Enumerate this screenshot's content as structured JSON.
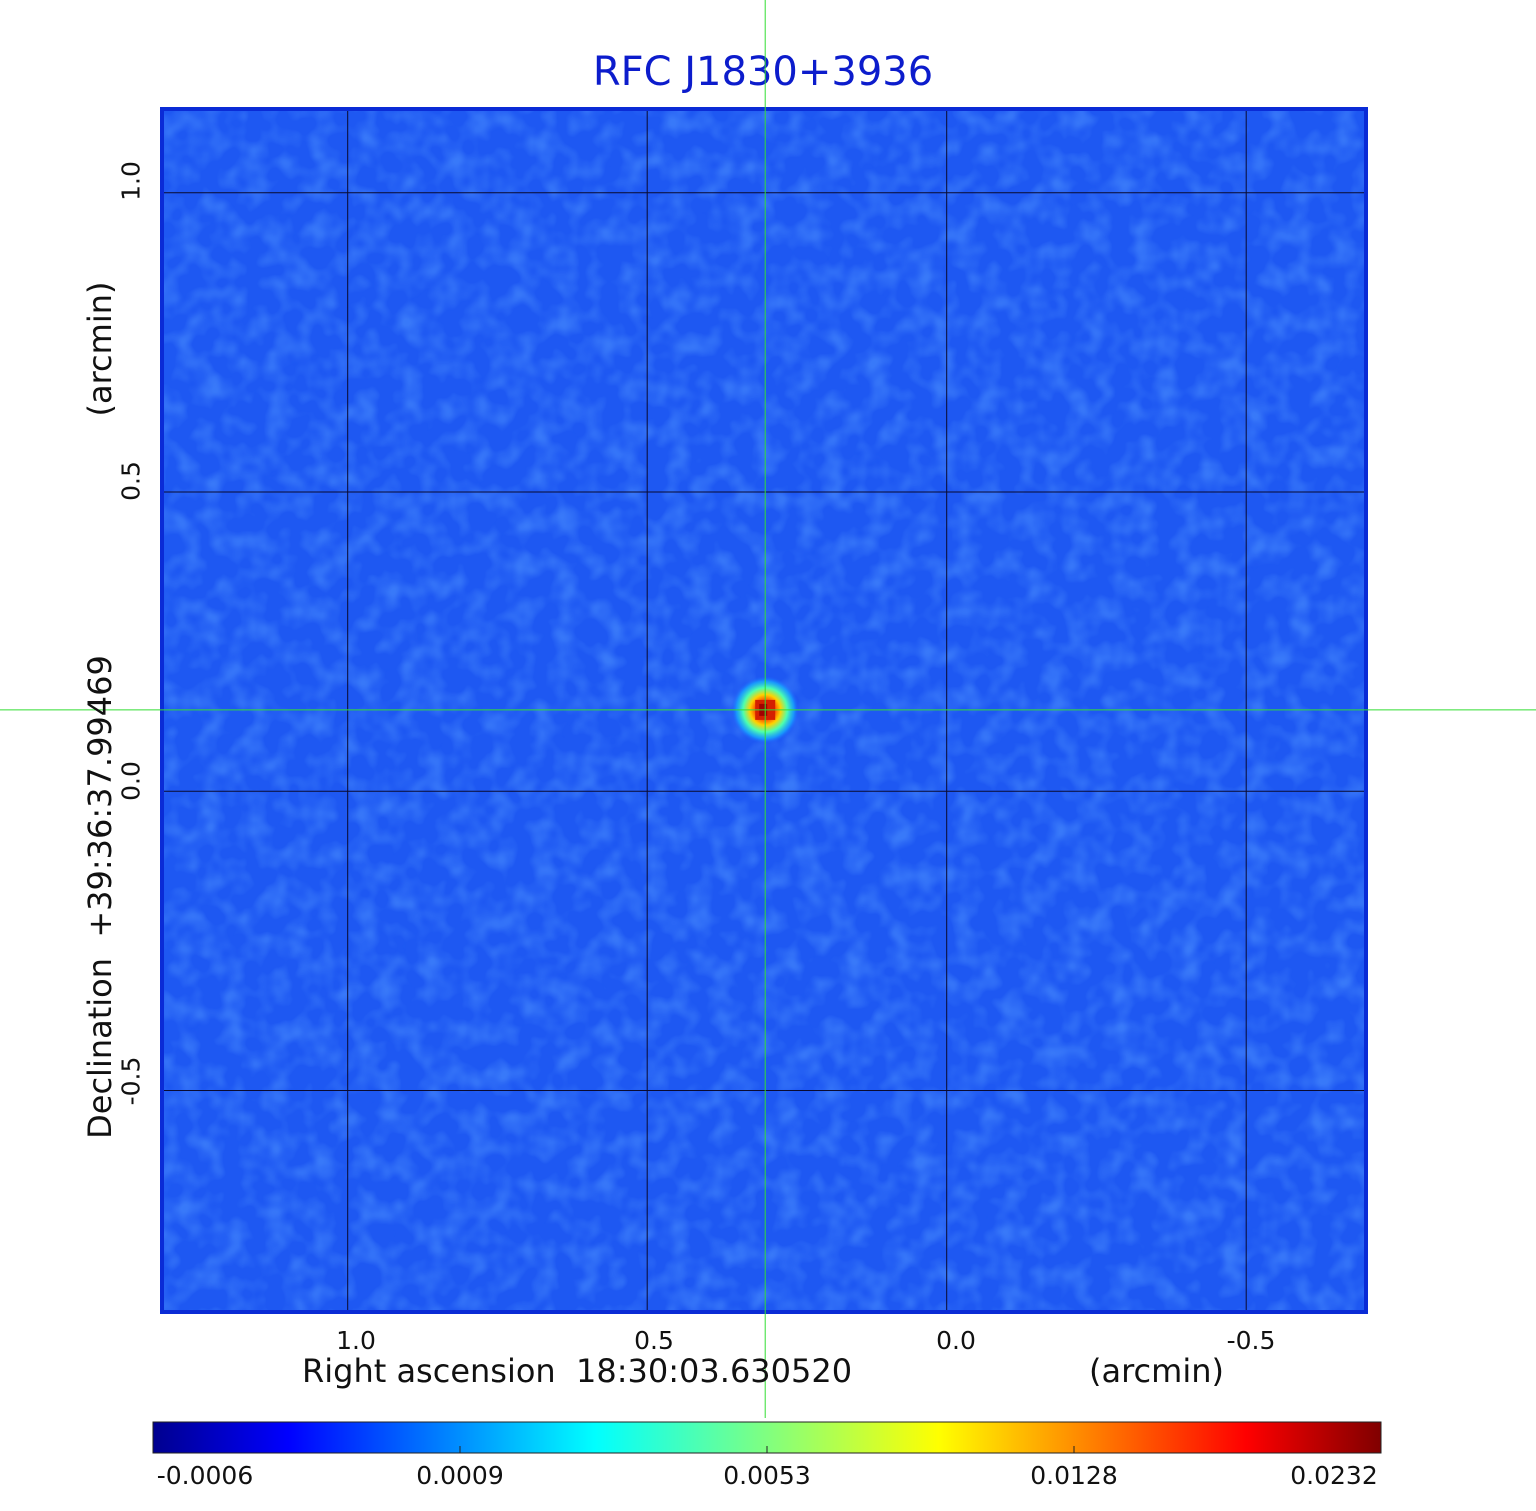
{
  "chart_data": {
    "type": "heatmap",
    "title": "RFC J1830+3936",
    "xlabel": "Right ascension  18:30:03.630520",
    "xlabel_unit": "(arcmin)",
    "ylabel": "Declination  +39:36:37.99469",
    "ylabel_unit": "(arcmin)",
    "xlim": [
      1.31,
      -0.7
    ],
    "ylim": [
      -0.87,
      1.14
    ],
    "x_ticks": [
      "1.0",
      "0.5",
      "0.0",
      "-0.5"
    ],
    "y_ticks": [
      "1.0",
      "0.5",
      "0.0",
      "-0.5"
    ],
    "grid": true,
    "crosshair": {
      "x": 0.303,
      "y": 0.136,
      "color": "#33dd33"
    },
    "source": {
      "x": 0.303,
      "y": 0.136,
      "peak": 0.0232
    },
    "noise_level": 0.0,
    "colormap": "jet",
    "colorbar_ticks": [
      "-0.0006",
      "0.0009",
      "0.0053",
      "0.0128",
      "0.0232"
    ],
    "frame_color": "#0a2bd6"
  }
}
